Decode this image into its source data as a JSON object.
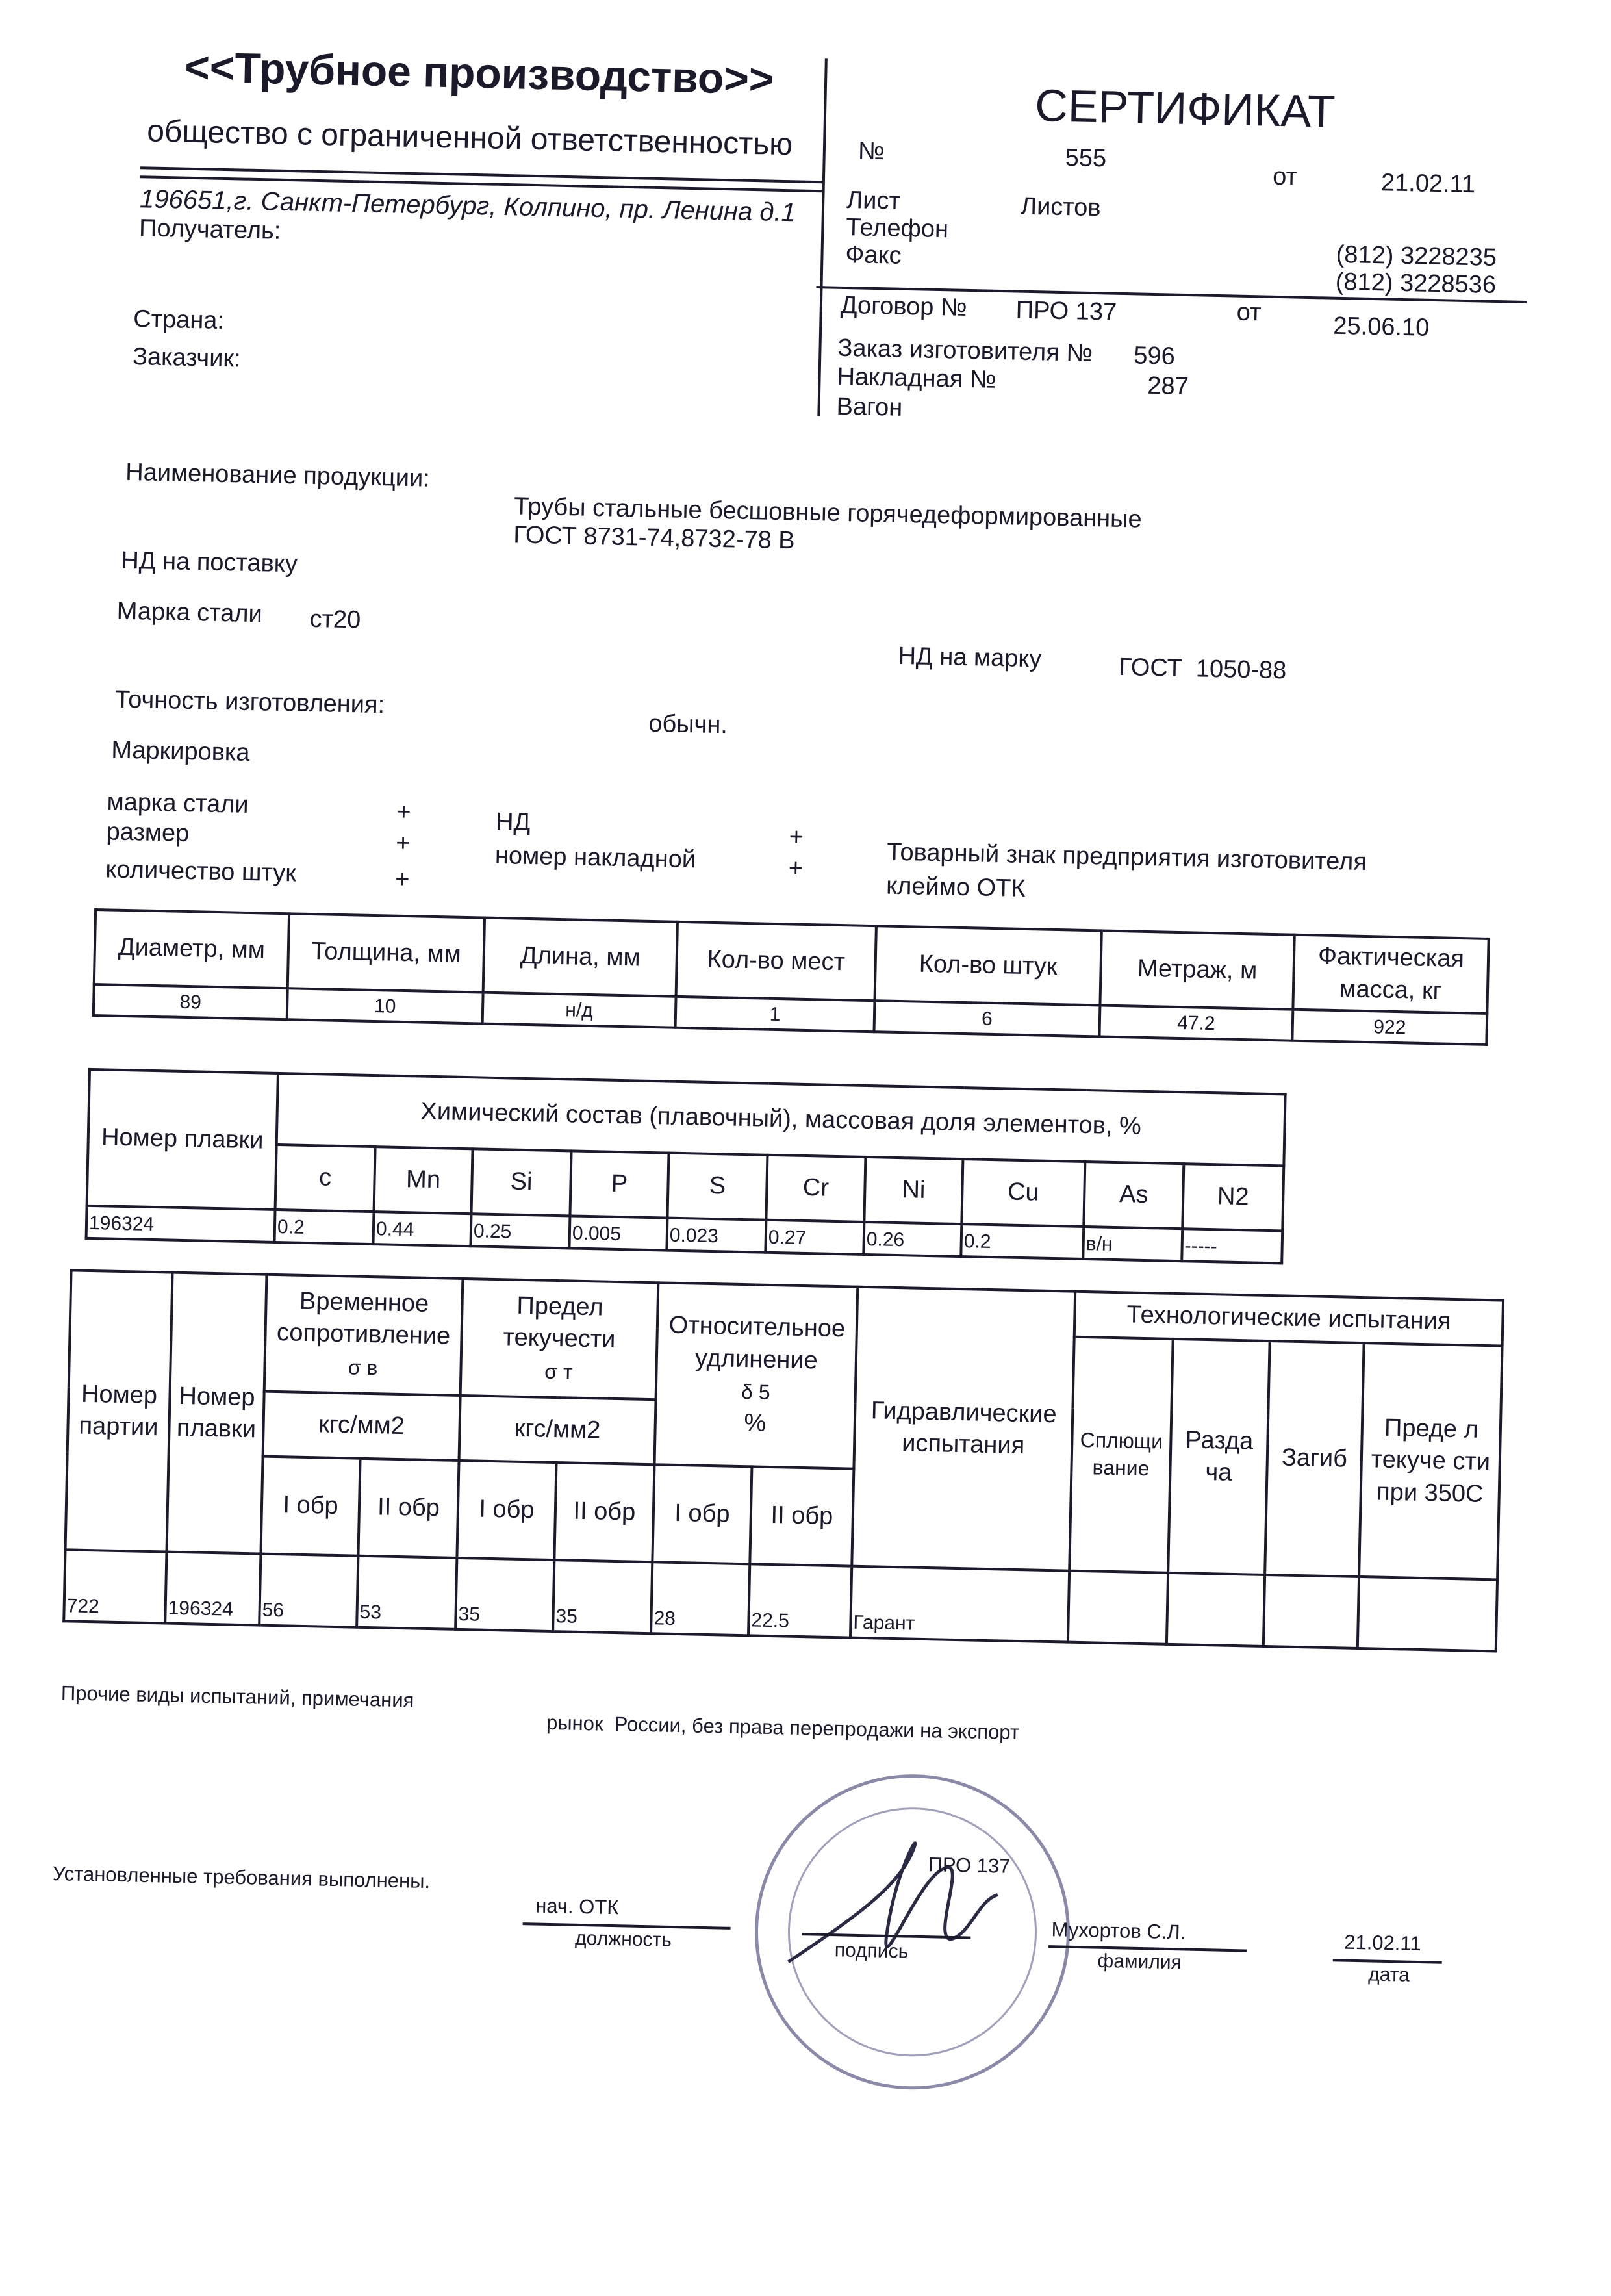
{
  "company": {
    "name": "<<Трубное производство>>",
    "legal_form": "общество с ограниченной ответственностью",
    "address": "196651,г. Санкт-Петербург, Колпино, пр. Ленина д.1"
  },
  "left_fields": {
    "recipient": "Получатель:",
    "country": "Страна:",
    "customer": "Заказчик:"
  },
  "certificate": {
    "title": "СЕРТИФИКАТ",
    "number_label": "№",
    "number": "555",
    "date_label": "от",
    "date": "21.02.11",
    "sheet_label": "Лист",
    "sheets_label": "Листов",
    "phone_label": "Телефон",
    "phone": "(812) 3228235",
    "fax_label": "Факс",
    "fax": "(812) 3228536",
    "contract_label": "Договор №",
    "contract": "ПРО 137",
    "contract_date_label": "от",
    "contract_date": "25.06.10",
    "order_label": "Заказ изготовителя №",
    "order": "596",
    "waybill_label": "Накладная №",
    "waybill": "287",
    "wagon_label": "Вагон"
  },
  "product": {
    "name_label": "Наименование продукции:",
    "name_line1": "Трубы стальные бесшовные горячедеформированные",
    "name_line2": "ГОСТ 8731-74,8732-78 В",
    "nd_supply_label": "НД на поставку",
    "steel_label": "Марка стали",
    "steel": "ст20",
    "nd_grade_label": "НД на марку",
    "nd_grade": "ГОСТ  1050-88",
    "accuracy_label": "Точность изготовления:",
    "accuracy": "обычн."
  },
  "marking": {
    "label": "Маркировка",
    "items": [
      {
        "label": "марка стали",
        "mark": "+"
      },
      {
        "label": "размер",
        "mark": "+"
      },
      {
        "label": "количество штук",
        "mark": "+"
      },
      {
        "label": "НД",
        "mark": "+"
      },
      {
        "label": "номер накладной",
        "mark": "+"
      }
    ],
    "trademark": "Товарный знак предприятия изготовителя",
    "otk": "клеймо ОТК"
  },
  "dimensions_table": {
    "headers": [
      "Диаметр, мм",
      "Толщина, мм",
      "Длина, мм",
      "Кол-во мест",
      "Кол-во штук",
      "Метраж, м",
      "Фактическая масса, кг"
    ],
    "row": [
      "89",
      "10",
      "н/д",
      "1",
      "6",
      "47.2",
      "922"
    ]
  },
  "chemistry_table": {
    "heat_header": "Номер плавки",
    "group_header": "Химический состав (плавочный), массовая доля элементов, %",
    "elements": [
      "c",
      "Mn",
      "Si",
      "P",
      "S",
      "Cr",
      "Ni",
      "Cu",
      "As",
      "N2"
    ],
    "heat": "196324",
    "values": [
      "0.2",
      "0.44",
      "0.25",
      "0.005",
      "0.023",
      "0.27",
      "0.26",
      "0.2",
      "в/н",
      "-----"
    ]
  },
  "mechanical_table": {
    "batch_header": "Номер партии",
    "heat_header": "Номер плавки",
    "tensile_header": "Временное сопротивление",
    "tensile_symbol": "σ в",
    "yield_header": "Предел текучести",
    "yield_symbol": "σ т",
    "unit": "кгс/мм2",
    "elong_header": "Относительное удлинение",
    "elong_symbol": "δ 5",
    "elong_unit": "%",
    "sample1": "I обр",
    "sample2": "II обр",
    "hydro_header": "Гидравлические испытания",
    "tech_header": "Технологические испытания",
    "tech_cols": [
      "Сплющи вание",
      "Разда ча",
      "Загиб",
      "Преде л текуче сти при 350С"
    ],
    "row": {
      "batch": "722",
      "heat": "196324",
      "t1": "56",
      "t2": "53",
      "y1": "35",
      "y2": "35",
      "e1": "28",
      "e2": "22.5",
      "hydro": "Гарант"
    }
  },
  "footer": {
    "other_label": "Прочие виды испытаний, примечания",
    "other_value": "рынок  России, без права перепродажи на экспорт",
    "requirements": "Установленные требования выполнены.",
    "position": "нач. ОТК",
    "position_caption": "должность",
    "signature_caption": "подпись",
    "name": "Мухортов С.Л.",
    "name_caption": "фамилия",
    "date": "21.02.11",
    "date_caption": "дата",
    "stamp_note": "ПРО 137"
  }
}
